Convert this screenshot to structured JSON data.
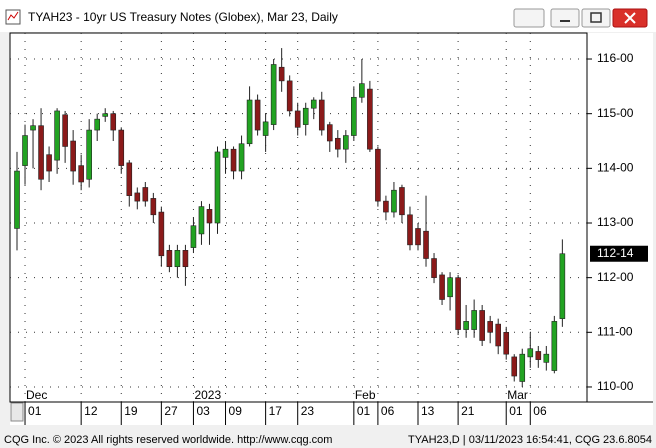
{
  "window": {
    "title": "TYAH23 - 10yr US Treasury Notes (Globex), Mar 23, Daily",
    "footer_left": "CQG Inc. © 2023 All rights reserved worldwide. http://www.cqg.com",
    "footer_right": "TYAH23,D | 03/11/2023 16:54:41, CQG 23.6.8054"
  },
  "chart_data": {
    "type": "candlestick",
    "categories": [
      null,
      "01",
      null,
      null,
      null,
      null,
      null,
      null,
      "12",
      null,
      null,
      null,
      null,
      "19",
      null,
      null,
      null,
      null,
      "27",
      null,
      null,
      null,
      "03",
      null,
      null,
      null,
      "09",
      null,
      null,
      null,
      null,
      "17",
      null,
      null,
      null,
      "23",
      null,
      null,
      null,
      null,
      null,
      null,
      "01",
      null,
      null,
      "06",
      null,
      null,
      null,
      null,
      "13",
      null,
      null,
      null,
      null,
      "21",
      null,
      null,
      null,
      null,
      null,
      "01",
      null,
      null,
      "06",
      null,
      null,
      null,
      null
    ],
    "month_labels": [
      null,
      "Dec",
      null,
      null,
      null,
      null,
      null,
      null,
      null,
      null,
      null,
      null,
      null,
      null,
      null,
      null,
      null,
      null,
      null,
      null,
      null,
      null,
      "2023",
      null,
      null,
      null,
      null,
      null,
      null,
      null,
      null,
      null,
      null,
      null,
      null,
      null,
      null,
      null,
      null,
      null,
      null,
      null,
      "Feb",
      null,
      null,
      null,
      null,
      null,
      null,
      null,
      null,
      null,
      null,
      null,
      null,
      null,
      null,
      null,
      null,
      null,
      null,
      "Mar",
      null,
      null,
      null,
      null,
      null,
      null,
      null
    ],
    "open": [
      112.9,
      114.05,
      114.7,
      114.78,
      114.25,
      114.15,
      114.98,
      114.5,
      114.05,
      113.8,
      114.7,
      114.95,
      115.0,
      114.7,
      114.1,
      113.55,
      113.65,
      113.45,
      113.2,
      112.5,
      112.2,
      112.5,
      112.55,
      112.8,
      113.25,
      113.0,
      114.2,
      114.35,
      113.95,
      114.45,
      115.25,
      114.6,
      114.8,
      115.85,
      115.6,
      115.05,
      114.8,
      115.1,
      115.25,
      114.8,
      114.55,
      114.35,
      114.6,
      115.3,
      115.45,
      114.35,
      113.4,
      113.2,
      113.65,
      113.15,
      112.9,
      112.85,
      112.35,
      112.05,
      111.65,
      112.0,
      111.05,
      111.05,
      111.4,
      111.2,
      111.15,
      111.0,
      110.55,
      110.1,
      110.55,
      110.65,
      110.45,
      110.3,
      111.25
    ],
    "high": [
      114.3,
      114.8,
      114.9,
      115.1,
      114.4,
      115.1,
      115.05,
      114.7,
      114.25,
      114.9,
      115.0,
      115.1,
      115.05,
      114.75,
      114.15,
      113.65,
      113.75,
      113.55,
      113.3,
      112.6,
      112.6,
      112.6,
      113.1,
      113.4,
      113.35,
      114.4,
      114.5,
      114.4,
      114.6,
      115.5,
      115.35,
      115.0,
      116.0,
      116.2,
      115.7,
      115.2,
      115.2,
      115.3,
      115.4,
      114.85,
      114.7,
      114.7,
      115.5,
      116.0,
      115.6,
      114.4,
      113.5,
      113.75,
      113.7,
      113.3,
      113.0,
      113.5,
      112.45,
      112.1,
      112.1,
      112.05,
      111.5,
      111.6,
      111.5,
      111.3,
      111.25,
      111.1,
      110.6,
      110.7,
      111.0,
      110.75,
      110.75,
      111.3,
      112.7
    ],
    "low": [
      112.5,
      113.7,
      114.0,
      113.6,
      113.75,
      113.9,
      114.1,
      113.7,
      113.6,
      113.65,
      114.5,
      114.85,
      114.5,
      113.9,
      113.3,
      113.25,
      113.3,
      113.0,
      112.2,
      112.1,
      112.0,
      111.85,
      112.45,
      112.6,
      112.6,
      112.8,
      113.9,
      113.8,
      113.8,
      114.4,
      114.6,
      114.3,
      114.7,
      115.4,
      114.95,
      114.6,
      114.6,
      114.9,
      114.6,
      114.3,
      114.2,
      114.1,
      114.5,
      115.2,
      114.3,
      113.3,
      113.05,
      113.1,
      113.0,
      112.5,
      112.5,
      112.2,
      111.9,
      111.5,
      111.4,
      110.95,
      110.9,
      110.9,
      110.75,
      110.8,
      110.6,
      110.5,
      110.1,
      110.0,
      110.35,
      110.35,
      110.3,
      110.25,
      111.1
    ],
    "close": [
      113.95,
      114.6,
      114.78,
      113.8,
      113.95,
      115.05,
      114.4,
      113.95,
      113.75,
      114.7,
      114.9,
      115.0,
      114.7,
      114.05,
      113.5,
      113.4,
      113.4,
      113.15,
      112.4,
      112.2,
      112.5,
      112.2,
      112.95,
      113.3,
      113.0,
      114.3,
      114.35,
      113.95,
      114.45,
      115.25,
      114.7,
      114.85,
      115.9,
      115.6,
      115.05,
      114.75,
      115.1,
      115.25,
      114.7,
      114.5,
      114.35,
      114.6,
      115.3,
      115.55,
      114.35,
      113.4,
      113.2,
      113.6,
      113.15,
      112.6,
      112.6,
      112.35,
      112.0,
      111.6,
      112.0,
      111.05,
      111.2,
      111.4,
      110.85,
      111.0,
      110.75,
      110.6,
      110.2,
      110.6,
      110.7,
      110.5,
      110.6,
      111.2,
      112.4375
    ],
    "up_color": "#22a322",
    "down_color": "#8b1a1a",
    "last_price_label": "112-14",
    "ylim": [
      109.725,
      116.476
    ],
    "yticks": [
      {
        "value": 110,
        "label": "110-00"
      },
      {
        "value": 111,
        "label": "111-00"
      },
      {
        "value": 112,
        "label": "112-00"
      },
      {
        "value": 113,
        "label": "113-00"
      },
      {
        "value": 114,
        "label": "114-00"
      },
      {
        "value": 115,
        "label": "115-00"
      },
      {
        "value": 116,
        "label": "116-00"
      }
    ],
    "grid": true
  }
}
